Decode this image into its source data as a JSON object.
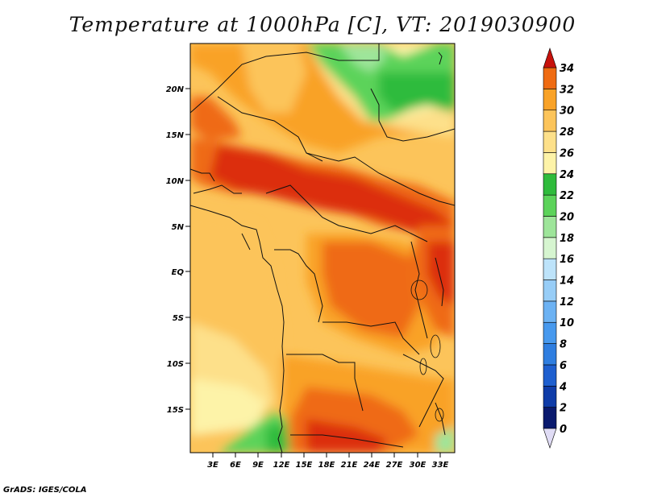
{
  "title": "Temperature at 1000hPa [C], VT: 2019030900",
  "credit": "GrADS: IGES/COLA",
  "lat_labels": [
    "20N",
    "15N",
    "10N",
    "5N",
    "EQ",
    "5S",
    "10S",
    "15S"
  ],
  "lon_labels": [
    "3E",
    "6E",
    "9E",
    "12E",
    "15E",
    "18E",
    "21E",
    "24E",
    "27E",
    "30E",
    "33E"
  ],
  "colorbar": {
    "levels": [
      "0",
      "2",
      "4",
      "6",
      "8",
      "10",
      "12",
      "14",
      "16",
      "18",
      "20",
      "22",
      "24",
      "26",
      "28",
      "30",
      "32",
      "34"
    ],
    "colors": [
      "#0a1a6e",
      "#0f3ca8",
      "#1e5fcf",
      "#2f7ee0",
      "#4799ee",
      "#6cb2f3",
      "#97cdf7",
      "#bde3fa",
      "#d6f5d0",
      "#9ee59a",
      "#5cd35a",
      "#2fbb3c",
      "#fdf3a8",
      "#fde08a",
      "#fcc45a",
      "#f9a227",
      "#ef6b12",
      "#dc2d10",
      "#c7120c"
    ],
    "below_color": "#e0dcf5",
    "above_color": "#c7120c"
  }
}
